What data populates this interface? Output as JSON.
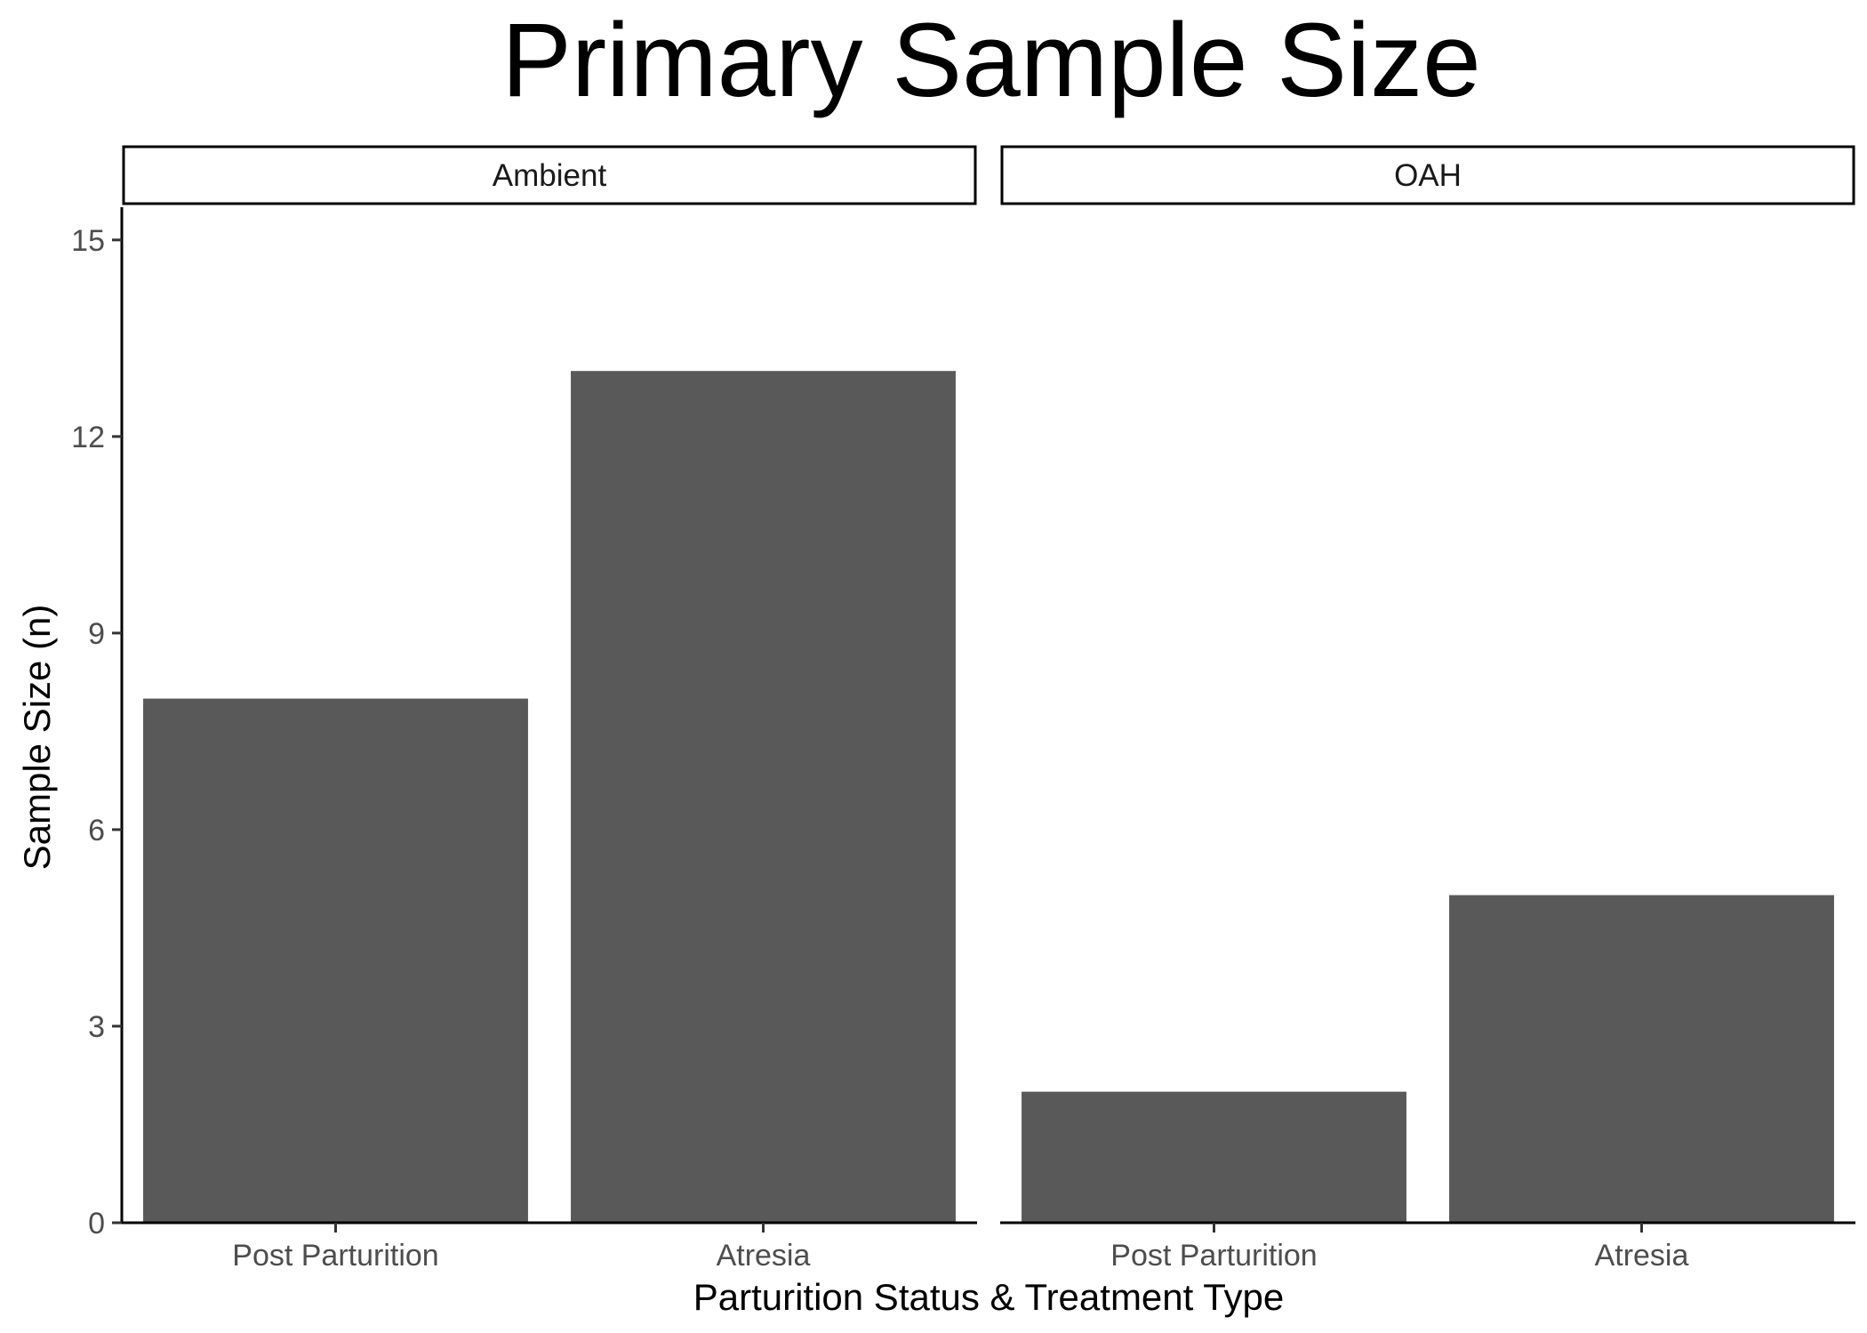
{
  "chart_data": {
    "type": "bar",
    "title": "Primary Sample Size",
    "xlabel": "Parturition Status & Treatment Type",
    "ylabel": "Sample Size (n)",
    "ylim": [
      0,
      15.5
    ],
    "yticks": [
      0,
      3,
      6,
      9,
      12,
      15
    ],
    "categories": [
      "Post Parturition",
      "Atresia"
    ],
    "bar_color": "#595959",
    "grid": false,
    "legend": "none",
    "panels": [
      {
        "facet": "Ambient",
        "values": [
          8,
          13
        ]
      },
      {
        "facet": "OAH",
        "values": [
          2,
          5
        ]
      }
    ]
  }
}
